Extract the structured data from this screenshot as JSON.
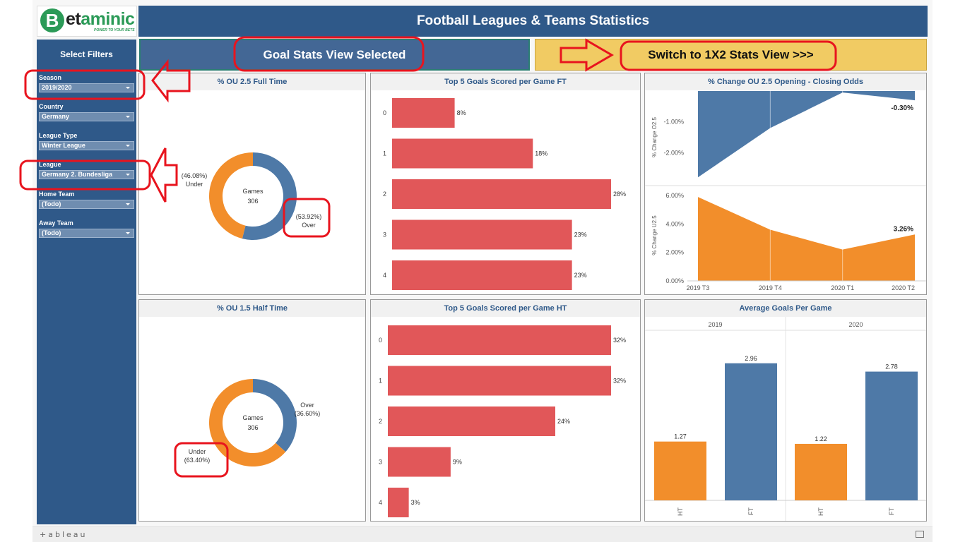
{
  "logo": {
    "mark": "B",
    "text_prefix": "et",
    "text_suffix": "aminic",
    "tagline": "POWER TO YOUR BETS"
  },
  "header": {
    "title": "Football Leagues & Teams Statistics"
  },
  "buttons": {
    "goal_view": "Goal Stats View Selected",
    "switch_view": "Switch to 1X2 Stats View >>>"
  },
  "sidebar": {
    "title": "Select Filters",
    "filters": [
      {
        "label": "Season",
        "value": "2019/2020"
      },
      {
        "label": "Country",
        "value": "Germany"
      },
      {
        "label": "League Type",
        "value": "Winter League"
      },
      {
        "label": "League",
        "value": "Germany 2. Bundesliga"
      },
      {
        "label": "Home Team",
        "value": "(Todo)"
      },
      {
        "label": "Away Team",
        "value": "(Todo)"
      }
    ]
  },
  "panels": {
    "ou25_ft": {
      "title": "% OU 2.5 Full Time"
    },
    "top5_ft": {
      "title": "Top 5 Goals Scored per Game FT"
    },
    "odds_change": {
      "title": "% Change OU 2.5 Opening - Closing Odds"
    },
    "ou15_ht": {
      "title": "% OU 1.5 Half Time"
    },
    "top5_ht": {
      "title": "Top 5 Goals Scored per Game HT"
    },
    "avg_goals": {
      "title": "Average Goals Per Game"
    }
  },
  "footer": {
    "brand": "+ableau"
  },
  "colors": {
    "blue": "#4e79a7",
    "orange": "#f28e2b",
    "red": "#e15759",
    "annotation": "#e8141e"
  },
  "chart_data": [
    {
      "id": "ou25_ft",
      "type": "pie",
      "title": "% OU 2.5 Full Time",
      "center_label": "Games",
      "center_value": "306",
      "slices": [
        {
          "name": "Over",
          "pct_label": "(53.92%)",
          "value": 53.92,
          "color": "#4e79a7"
        },
        {
          "name": "Under",
          "pct_label": "(46.08%)",
          "value": 46.08,
          "color": "#f28e2b"
        }
      ]
    },
    {
      "id": "top5_ft",
      "type": "bar",
      "title": "Top 5 Goals Scored per Game FT",
      "categories": [
        "0",
        "1",
        "2",
        "3",
        "4"
      ],
      "values": [
        8,
        18,
        28,
        23,
        23
      ],
      "value_labels": [
        "8%",
        "18%",
        "28%",
        "23%",
        "23%"
      ]
    },
    {
      "id": "odds_change",
      "type": "area",
      "title": "% Change OU 2.5 Opening - Closing Odds",
      "x": [
        "2019 T3",
        "2019 T4",
        "2020 T1",
        "2020 T2"
      ],
      "series": [
        {
          "name": "% Change O2.5",
          "values": [
            -2.8,
            -1.2,
            -0.05,
            -0.3
          ],
          "last_label": "-0.30%",
          "color": "#4e79a7",
          "ylim": [
            -3.0,
            0.0
          ],
          "ticks": [
            -1.0,
            -2.0
          ],
          "tick_labels": [
            "-1.00%",
            "-2.00%"
          ]
        },
        {
          "name": "% Change U2.5",
          "values": [
            5.9,
            3.6,
            2.2,
            3.26
          ],
          "last_label": "3.26%",
          "color": "#f28e2b",
          "ylim": [
            0.0,
            6.4
          ],
          "ticks": [
            6.0,
            4.0,
            2.0,
            0.0
          ],
          "tick_labels": [
            "6.00%",
            "4.00%",
            "2.00%",
            "0.00%"
          ]
        }
      ]
    },
    {
      "id": "ou15_ht",
      "type": "pie",
      "title": "% OU 1.5 Half Time",
      "center_label": "Games",
      "center_value": "306",
      "slices": [
        {
          "name": "Over",
          "pct_label": "(36.60%)",
          "value": 36.6,
          "color": "#4e79a7"
        },
        {
          "name": "Under",
          "pct_label": "(63.40%)",
          "value": 63.4,
          "color": "#f28e2b"
        }
      ]
    },
    {
      "id": "top5_ht",
      "type": "bar",
      "title": "Top 5 Goals Scored per Game HT",
      "categories": [
        "0",
        "1",
        "2",
        "3",
        "4"
      ],
      "values": [
        32,
        32,
        24,
        9,
        3
      ],
      "value_labels": [
        "32%",
        "32%",
        "24%",
        "9%",
        "3%"
      ]
    },
    {
      "id": "avg_goals",
      "type": "bar",
      "title": "Average Goals Per Game",
      "groups": [
        "2019",
        "2020"
      ],
      "categories": [
        "HT",
        "FT"
      ],
      "values": [
        [
          1.27,
          2.96
        ],
        [
          1.22,
          2.78
        ]
      ],
      "value_labels": [
        [
          "1.27",
          "2.96"
        ],
        [
          "1.22",
          "2.78"
        ]
      ],
      "ylim": [
        0,
        3.2
      ]
    }
  ]
}
